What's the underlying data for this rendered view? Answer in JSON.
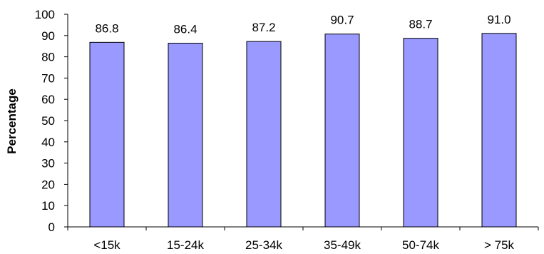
{
  "chart_data": {
    "type": "bar",
    "categories": [
      "<15k",
      "15-24k",
      "25-34k",
      "35-49k",
      "50-74k",
      "> 75k"
    ],
    "values": [
      86.8,
      86.4,
      87.2,
      90.7,
      88.7,
      91.0
    ],
    "value_labels": [
      "86.8",
      "86.4",
      "87.2",
      "90.7",
      "88.7",
      "91.0"
    ],
    "title": "",
    "xlabel": "",
    "ylabel": "Percentage",
    "ylim": [
      0,
      100
    ],
    "yticks": [
      0,
      10,
      20,
      30,
      40,
      50,
      60,
      70,
      80,
      90,
      100
    ],
    "grid": false,
    "legend": "none",
    "colors": {
      "bar_fill": "#9999ff",
      "bar_stroke": "#000000",
      "axis": "#000000"
    }
  }
}
